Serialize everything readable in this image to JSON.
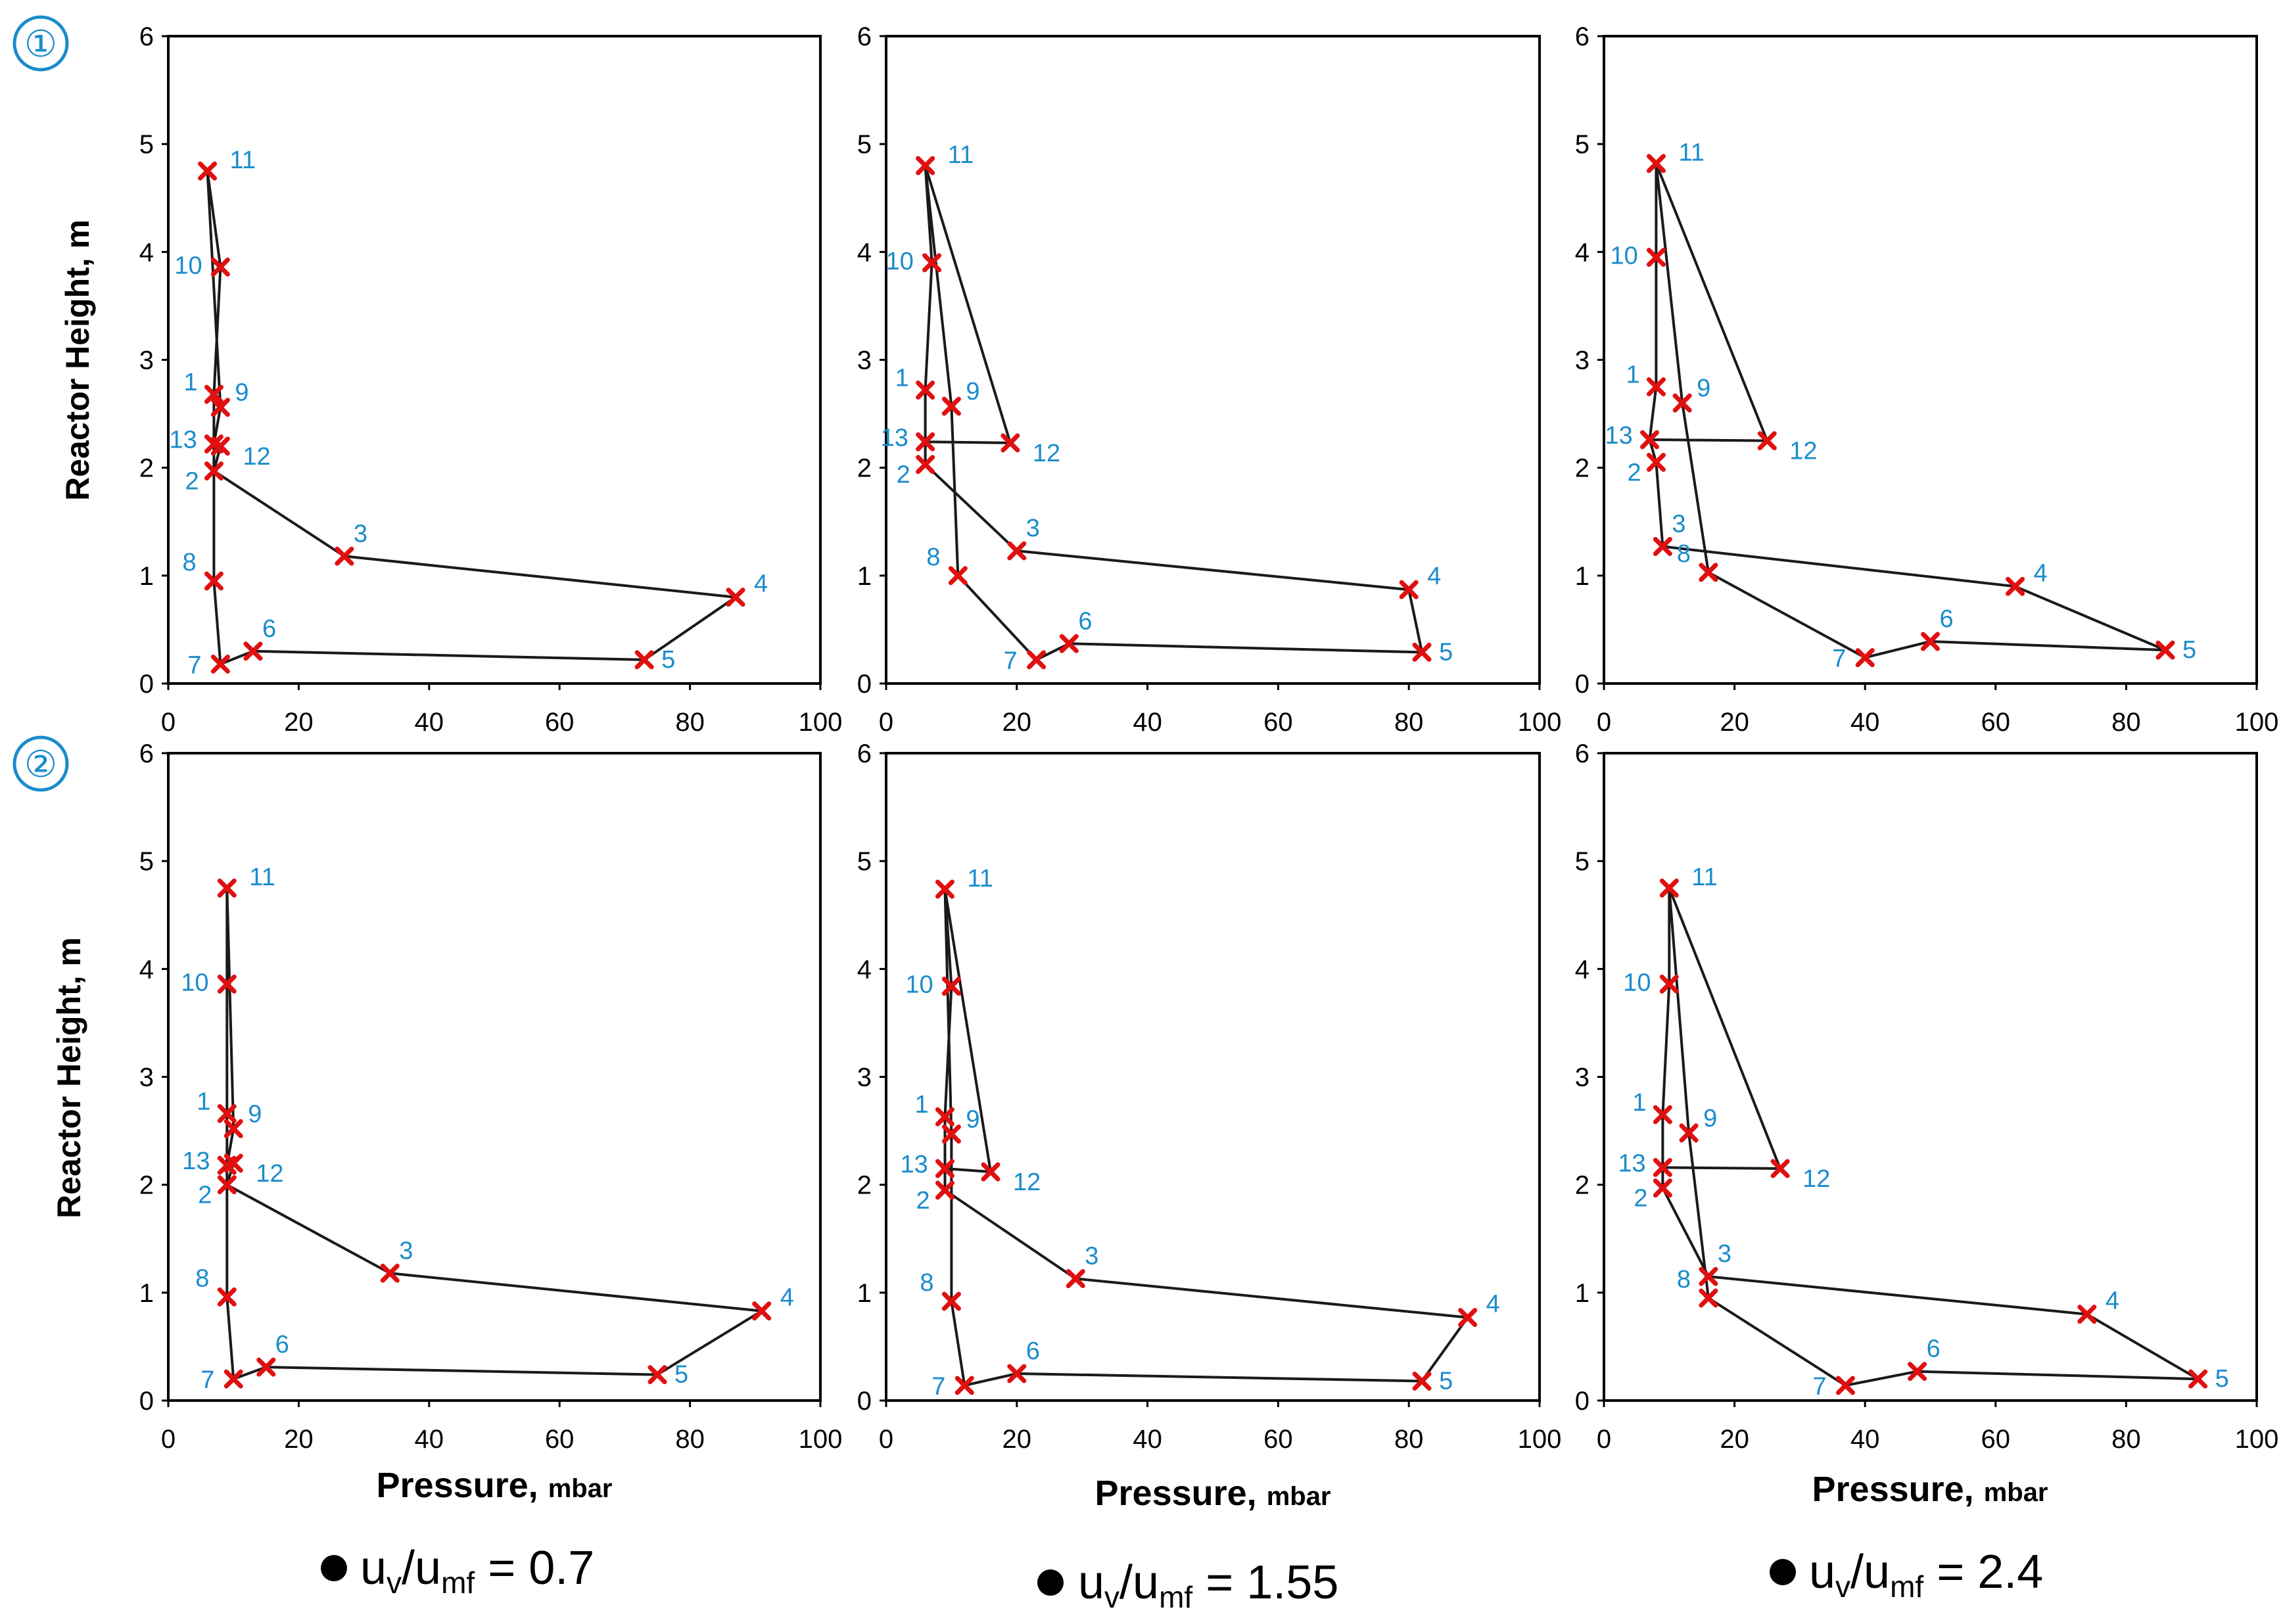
{
  "figure": {
    "y_axis_title": "Reactor Height, m",
    "x_axis_title_main": "Pressure,",
    "x_axis_title_unit": "mbar"
  },
  "rows": [
    {
      "marker": "①"
    },
    {
      "marker": "②"
    }
  ],
  "columns": [
    {
      "caption": {
        "u": "u",
        "v": "v",
        "slash": "/u",
        "mf": "mf",
        "value": " = 0.7"
      }
    },
    {
      "caption": {
        "u": "u",
        "v": "v",
        "slash": "/u",
        "mf": "mf",
        "value": " = 1.55"
      }
    },
    {
      "caption": {
        "u": "u",
        "v": "v",
        "slash": "/u",
        "mf": "mf",
        "value": " = 2.4"
      }
    }
  ],
  "colors": {
    "line": "#1a1a1a",
    "marker": "#e01010",
    "label": "#1a8ccc"
  },
  "chart_data": [
    {
      "type": "line",
      "row": 1,
      "col": 1,
      "xlim": [
        0,
        100
      ],
      "ylim": [
        0,
        6
      ],
      "xticks": [
        "0",
        "20",
        "40",
        "60",
        "80",
        "100"
      ],
      "yticks": [
        "0",
        "1",
        "2",
        "3",
        "4",
        "5",
        "6"
      ],
      "points": [
        {
          "label": "1",
          "x": 7,
          "y": 2.68
        },
        {
          "label": "2",
          "x": 7,
          "y": 1.97
        },
        {
          "label": "3",
          "x": 27,
          "y": 1.18
        },
        {
          "label": "4",
          "x": 87,
          "y": 0.8
        },
        {
          "label": "5",
          "x": 73,
          "y": 0.22
        },
        {
          "label": "6",
          "x": 13,
          "y": 0.3
        },
        {
          "label": "7",
          "x": 8,
          "y": 0.18
        },
        {
          "label": "8",
          "x": 7,
          "y": 0.95
        },
        {
          "label": "9",
          "x": 8,
          "y": 2.56
        },
        {
          "label": "10",
          "x": 8,
          "y": 3.86
        },
        {
          "label": "11",
          "x": 6,
          "y": 4.75
        },
        {
          "label": "12",
          "x": 8,
          "y": 2.2
        },
        {
          "label": "13",
          "x": 7,
          "y": 2.22
        }
      ],
      "path": [
        "11",
        "9",
        "13",
        "12",
        "2",
        "3",
        "4",
        "5",
        "6",
        "7",
        "8",
        "2",
        "1",
        "10",
        "11"
      ]
    },
    {
      "type": "line",
      "row": 1,
      "col": 2,
      "xlim": [
        0,
        100
      ],
      "ylim": [
        0,
        6
      ],
      "xticks": [
        "0",
        "20",
        "40",
        "60",
        "80",
        "100"
      ],
      "yticks": [
        "0",
        "1",
        "2",
        "3",
        "4",
        "5",
        "6"
      ],
      "points": [
        {
          "label": "1",
          "x": 6,
          "y": 2.72
        },
        {
          "label": "2",
          "x": 6,
          "y": 2.03
        },
        {
          "label": "3",
          "x": 20,
          "y": 1.23
        },
        {
          "label": "4",
          "x": 80,
          "y": 0.87
        },
        {
          "label": "5",
          "x": 82,
          "y": 0.29
        },
        {
          "label": "6",
          "x": 28,
          "y": 0.37
        },
        {
          "label": "7",
          "x": 23,
          "y": 0.22
        },
        {
          "label": "8",
          "x": 11,
          "y": 1.0
        },
        {
          "label": "9",
          "x": 10,
          "y": 2.57
        },
        {
          "label": "10",
          "x": 7,
          "y": 3.9
        },
        {
          "label": "11",
          "x": 6,
          "y": 4.8
        },
        {
          "label": "12",
          "x": 19,
          "y": 2.23
        },
        {
          "label": "13",
          "x": 6,
          "y": 2.24
        }
      ],
      "path": [
        "11",
        "10",
        "1",
        "13",
        "2",
        "3",
        "4",
        "5",
        "6",
        "7",
        "8",
        "9",
        "11",
        "12",
        "13"
      ]
    },
    {
      "type": "line",
      "row": 1,
      "col": 3,
      "xlim": [
        0,
        100
      ],
      "ylim": [
        0,
        6
      ],
      "xticks": [
        "0",
        "20",
        "40",
        "60",
        "80",
        "100"
      ],
      "yticks": [
        "0",
        "1",
        "2",
        "3",
        "4",
        "5",
        "6"
      ],
      "points": [
        {
          "label": "1",
          "x": 8,
          "y": 2.75
        },
        {
          "label": "2",
          "x": 8,
          "y": 2.05
        },
        {
          "label": "3",
          "x": 9,
          "y": 1.27
        },
        {
          "label": "4",
          "x": 63,
          "y": 0.9
        },
        {
          "label": "5",
          "x": 86,
          "y": 0.31
        },
        {
          "label": "6",
          "x": 50,
          "y": 0.39
        },
        {
          "label": "7",
          "x": 40,
          "y": 0.24
        },
        {
          "label": "8",
          "x": 16,
          "y": 1.03
        },
        {
          "label": "9",
          "x": 12,
          "y": 2.6
        },
        {
          "label": "10",
          "x": 8,
          "y": 3.95
        },
        {
          "label": "11",
          "x": 8,
          "y": 4.82
        },
        {
          "label": "12",
          "x": 25,
          "y": 2.25
        },
        {
          "label": "13",
          "x": 7,
          "y": 2.26
        }
      ],
      "path": [
        "11",
        "10",
        "1",
        "13",
        "2",
        "3",
        "4",
        "5",
        "6",
        "7",
        "8",
        "9",
        "11",
        "12",
        "13"
      ]
    },
    {
      "type": "line",
      "row": 2,
      "col": 1,
      "xlim": [
        0,
        100
      ],
      "ylim": [
        0,
        6
      ],
      "xticks": [
        "0",
        "20",
        "40",
        "60",
        "80",
        "100"
      ],
      "yticks": [
        "0",
        "1",
        "2",
        "3",
        "4",
        "5",
        "6"
      ],
      "points": [
        {
          "label": "1",
          "x": 9,
          "y": 2.66
        },
        {
          "label": "2",
          "x": 9,
          "y": 2.0
        },
        {
          "label": "3",
          "x": 34,
          "y": 1.18
        },
        {
          "label": "4",
          "x": 91,
          "y": 0.83
        },
        {
          "label": "5",
          "x": 75,
          "y": 0.24
        },
        {
          "label": "6",
          "x": 15,
          "y": 0.31
        },
        {
          "label": "7",
          "x": 10,
          "y": 0.2
        },
        {
          "label": "8",
          "x": 9,
          "y": 0.96
        },
        {
          "label": "9",
          "x": 10,
          "y": 2.52
        },
        {
          "label": "10",
          "x": 9,
          "y": 3.86
        },
        {
          "label": "11",
          "x": 9,
          "y": 4.75
        },
        {
          "label": "12",
          "x": 10,
          "y": 2.2
        },
        {
          "label": "13",
          "x": 9,
          "y": 2.18
        }
      ],
      "path": [
        "11",
        "9",
        "13",
        "12",
        "2",
        "3",
        "4",
        "5",
        "6",
        "7",
        "8",
        "2",
        "1",
        "10",
        "11"
      ]
    },
    {
      "type": "line",
      "row": 2,
      "col": 2,
      "xlim": [
        0,
        100
      ],
      "ylim": [
        0,
        6
      ],
      "xticks": [
        "0",
        "20",
        "40",
        "60",
        "80",
        "100"
      ],
      "yticks": [
        "0",
        "1",
        "2",
        "3",
        "4",
        "5",
        "6"
      ],
      "points": [
        {
          "label": "1",
          "x": 9,
          "y": 2.63
        },
        {
          "label": "2",
          "x": 9,
          "y": 1.95
        },
        {
          "label": "3",
          "x": 29,
          "y": 1.13
        },
        {
          "label": "4",
          "x": 89,
          "y": 0.77
        },
        {
          "label": "5",
          "x": 82,
          "y": 0.18
        },
        {
          "label": "6",
          "x": 20,
          "y": 0.25
        },
        {
          "label": "7",
          "x": 12,
          "y": 0.14
        },
        {
          "label": "8",
          "x": 10,
          "y": 0.92
        },
        {
          "label": "9",
          "x": 10,
          "y": 2.47
        },
        {
          "label": "10",
          "x": 10,
          "y": 3.84
        },
        {
          "label": "11",
          "x": 9,
          "y": 4.74
        },
        {
          "label": "12",
          "x": 16,
          "y": 2.12
        },
        {
          "label": "13",
          "x": 9,
          "y": 2.15
        }
      ],
      "path": [
        "11",
        "10",
        "1",
        "13",
        "2",
        "3",
        "4",
        "5",
        "6",
        "7",
        "8",
        "9",
        "11",
        "12",
        "13"
      ]
    },
    {
      "type": "line",
      "row": 2,
      "col": 3,
      "xlim": [
        0,
        100
      ],
      "ylim": [
        0,
        6
      ],
      "xticks": [
        "0",
        "20",
        "40",
        "60",
        "80",
        "100"
      ],
      "yticks": [
        "0",
        "1",
        "2",
        "3",
        "4",
        "5",
        "6"
      ],
      "points": [
        {
          "label": "1",
          "x": 9,
          "y": 2.65
        },
        {
          "label": "2",
          "x": 9,
          "y": 1.97
        },
        {
          "label": "3",
          "x": 16,
          "y": 1.15
        },
        {
          "label": "4",
          "x": 74,
          "y": 0.8
        },
        {
          "label": "5",
          "x": 91,
          "y": 0.2
        },
        {
          "label": "6",
          "x": 48,
          "y": 0.27
        },
        {
          "label": "7",
          "x": 37,
          "y": 0.14
        },
        {
          "label": "8",
          "x": 16,
          "y": 0.95
        },
        {
          "label": "9",
          "x": 13,
          "y": 2.48
        },
        {
          "label": "10",
          "x": 10,
          "y": 3.86
        },
        {
          "label": "11",
          "x": 10,
          "y": 4.75
        },
        {
          "label": "12",
          "x": 27,
          "y": 2.15
        },
        {
          "label": "13",
          "x": 9,
          "y": 2.16
        }
      ],
      "path": [
        "11",
        "10",
        "1",
        "13",
        "2",
        "3",
        "4",
        "5",
        "6",
        "7",
        "8",
        "9",
        "11",
        "12",
        "13"
      ]
    }
  ]
}
